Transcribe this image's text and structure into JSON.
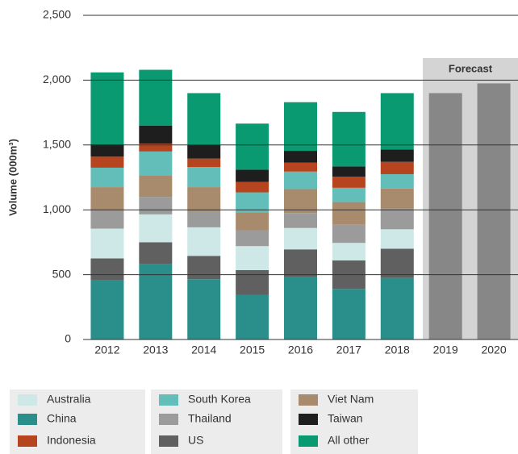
{
  "chart_data": {
    "type": "stacked_bar",
    "y_label": "Volume (000m³)",
    "categories": [
      "2012",
      "2013",
      "2014",
      "2015",
      "2016",
      "2017",
      "2018",
      "2019",
      "2020"
    ],
    "ylim": [
      0,
      2500
    ],
    "yticks": [
      0,
      500,
      {
        "value": 1000,
        "label": "1,000"
      },
      {
        "value": 1500,
        "label": "1,500"
      },
      {
        "value": 2000,
        "label": "2,000"
      },
      {
        "value": 2500,
        "label": "2,500"
      }
    ],
    "grid": true,
    "series": [
      {
        "name": "China",
        "color": "#2a8f8a",
        "values": [
          455,
          580,
          465,
          345,
          480,
          390,
          475,
          null,
          null
        ]
      },
      {
        "name": "US",
        "color": "#606060",
        "values": [
          170,
          170,
          180,
          190,
          215,
          220,
          225,
          null,
          null
        ]
      },
      {
        "name": "Australia",
        "color": "#cde8e6",
        "values": [
          230,
          215,
          220,
          185,
          165,
          135,
          150,
          null,
          null
        ]
      },
      {
        "name": "Thailand",
        "color": "#9b9b9b",
        "values": [
          135,
          135,
          120,
          120,
          115,
          140,
          160,
          null,
          null
        ]
      },
      {
        "name": "Viet Nam",
        "color": "#a88b6c",
        "values": [
          185,
          165,
          190,
          140,
          185,
          175,
          155,
          null,
          null
        ]
      },
      {
        "name": "South Korea",
        "color": "#63bdb8",
        "values": [
          150,
          185,
          155,
          155,
          135,
          110,
          110,
          null,
          null
        ]
      },
      {
        "name": "Indonesia",
        "color": "#b5441f",
        "values": [
          85,
          60,
          65,
          80,
          70,
          85,
          95,
          null,
          null
        ]
      },
      {
        "name": "Taiwan",
        "color": "#1e1e1e",
        "values": [
          95,
          140,
          105,
          95,
          90,
          80,
          95,
          null,
          null
        ]
      },
      {
        "name": "All other",
        "color": "#0a9a72",
        "values": [
          555,
          430,
          400,
          355,
          375,
          420,
          435,
          null,
          null
        ]
      }
    ],
    "forecast": {
      "label": "Forecast",
      "color": "#878787",
      "values": [
        null,
        null,
        null,
        null,
        null,
        null,
        null,
        1900,
        1975
      ]
    }
  }
}
